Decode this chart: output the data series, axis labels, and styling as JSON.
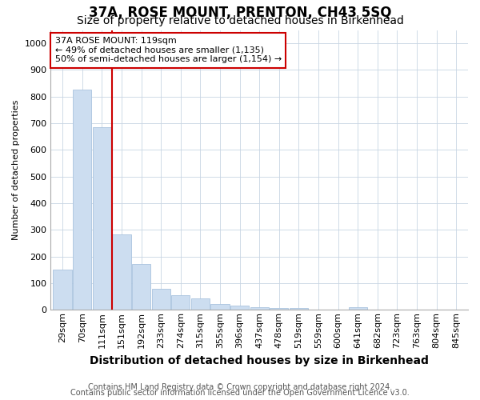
{
  "title": "37A, ROSE MOUNT, PRENTON, CH43 5SQ",
  "subtitle": "Size of property relative to detached houses in Birkenhead",
  "xlabel": "Distribution of detached houses by size in Birkenhead",
  "ylabel": "Number of detached properties",
  "footer_line1": "Contains HM Land Registry data © Crown copyright and database right 2024.",
  "footer_line2": "Contains public sector information licensed under the Open Government Licence v3.0.",
  "bins": [
    "29sqm",
    "70sqm",
    "111sqm",
    "151sqm",
    "192sqm",
    "233sqm",
    "274sqm",
    "315sqm",
    "355sqm",
    "396sqm",
    "437sqm",
    "478sqm",
    "519sqm",
    "559sqm",
    "600sqm",
    "641sqm",
    "682sqm",
    "723sqm",
    "763sqm",
    "804sqm",
    "845sqm"
  ],
  "values": [
    150,
    825,
    685,
    283,
    172,
    78,
    55,
    44,
    22,
    15,
    10,
    8,
    8,
    0,
    0,
    10,
    0,
    0,
    0,
    0,
    0
  ],
  "bar_color": "#ccddf0",
  "bar_edge_color": "#aac4df",
  "grid_color": "#c8d4e3",
  "background_color": "#ffffff",
  "red_line_x": 2.5,
  "annotation_line1": "37A ROSE MOUNT: 119sqm",
  "annotation_line2": "← 49% of detached houses are smaller (1,135)",
  "annotation_line3": "50% of semi-detached houses are larger (1,154) →",
  "annotation_box_color": "white",
  "annotation_box_edge": "#cc0000",
  "ylim": [
    0,
    1050
  ],
  "yticks": [
    0,
    100,
    200,
    300,
    400,
    500,
    600,
    700,
    800,
    900,
    1000
  ],
  "title_fontsize": 12,
  "subtitle_fontsize": 10,
  "xlabel_fontsize": 10,
  "ylabel_fontsize": 8,
  "tick_fontsize": 8,
  "annotation_fontsize": 8,
  "footer_fontsize": 7
}
